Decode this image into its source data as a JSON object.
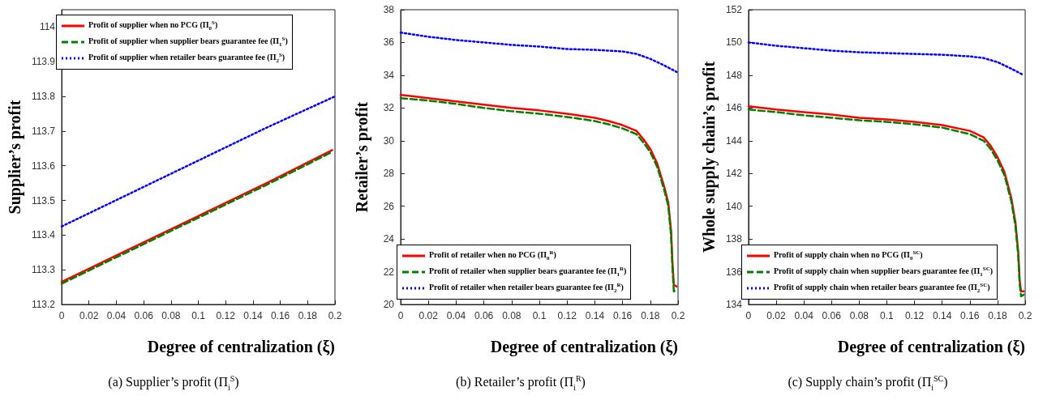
{
  "chart_data": [
    {
      "type": "line",
      "title": "(a) Supplier’s profit (Π$_{i}$$^{S}$)",
      "xlabel": "Degree of centralization (ξ)",
      "ylabel": "Supplier’s profit",
      "xlim": [
        0,
        0.2
      ],
      "xticks": [
        0,
        0.02,
        0.04,
        0.06,
        0.08,
        0.1,
        0.12,
        0.14,
        0.16,
        0.18,
        0.2
      ],
      "ylim": [
        113.2,
        114.05
      ],
      "yticks": [
        113.2,
        113.3,
        113.4,
        113.5,
        113.6,
        113.7,
        113.8,
        113.9,
        114
      ],
      "grid": false,
      "legend": "top left",
      "marker": "none",
      "series": [
        {
          "name": "Profit of supplier when no PCG (Π$_{0}$$^{S}$)",
          "color": "#ff0000",
          "line_style": "solid",
          "x": [
            0,
            0.05,
            0.1,
            0.15,
            0.198
          ],
          "values": [
            113.265,
            113.36,
            113.455,
            113.55,
            113.645
          ]
        },
        {
          "name": "Profit of supplier when supplier bears guarantee fee (Π$_{1}$$^{S}$)",
          "color": "#008000",
          "line_style": "dashed",
          "x": [
            0,
            0.05,
            0.1,
            0.15,
            0.198
          ],
          "values": [
            113.26,
            113.355,
            113.45,
            113.545,
            113.64
          ]
        },
        {
          "name": "Profit of supplier when retailer bears guarantee fee (Π$_{2}$$^{S}$)",
          "color": "#0000ff",
          "line_style": "dotted",
          "x": [
            0,
            0.05,
            0.1,
            0.15,
            0.2
          ],
          "values": [
            113.425,
            113.52,
            113.615,
            113.71,
            113.8
          ]
        }
      ]
    },
    {
      "type": "line",
      "title": "(b) Retailer’s profit (Π$_{i}$$^{R}$)",
      "xlabel": "Degree of centralization (ξ)",
      "ylabel": "Retailer’s profit",
      "xlim": [
        0,
        0.2
      ],
      "xticks": [
        0,
        0.02,
        0.04,
        0.06,
        0.08,
        0.1,
        0.12,
        0.14,
        0.16,
        0.18,
        0.2
      ],
      "ylim": [
        20,
        38
      ],
      "yticks": [
        20,
        22,
        24,
        26,
        28,
        30,
        32,
        34,
        36,
        38
      ],
      "grid": false,
      "legend": "bottom left",
      "marker": "none",
      "series": [
        {
          "name": "Profit of retailer when no PCG (Π$_{0}$$^{R}$)",
          "color": "#ff0000",
          "line_style": "solid",
          "x": [
            0,
            0.02,
            0.04,
            0.06,
            0.08,
            0.1,
            0.12,
            0.14,
            0.15,
            0.16,
            0.17,
            0.175,
            0.18,
            0.185,
            0.19,
            0.193,
            0.195,
            0.196,
            0.197,
            0.199
          ],
          "values": [
            32.8,
            32.6,
            32.4,
            32.2,
            32.0,
            31.85,
            31.65,
            31.4,
            31.2,
            30.95,
            30.6,
            30.1,
            29.5,
            28.6,
            27.2,
            26.2,
            24.5,
            22.5,
            21.2,
            21.1
          ]
        },
        {
          "name": "Profit of retailer when supplier bears guarantee fee (Π$_{1}$$^{R}$)",
          "color": "#008000",
          "line_style": "dashed",
          "x": [
            0,
            0.02,
            0.04,
            0.06,
            0.08,
            0.1,
            0.12,
            0.14,
            0.15,
            0.16,
            0.17,
            0.175,
            0.18,
            0.185,
            0.19,
            0.193,
            0.195,
            0.196,
            0.197,
            0.199
          ],
          "values": [
            32.6,
            32.45,
            32.25,
            32.0,
            31.8,
            31.65,
            31.45,
            31.2,
            31.0,
            30.75,
            30.4,
            29.9,
            29.3,
            28.4,
            27.0,
            26.0,
            24.2,
            22.2,
            20.8,
            20.9
          ]
        },
        {
          "name": "Profit of retailer when retailer bears guarantee fee (Π$_{2}$$^{R}$)",
          "color": "#0000ff",
          "line_style": "dotted",
          "x": [
            0,
            0.02,
            0.04,
            0.06,
            0.08,
            0.1,
            0.12,
            0.14,
            0.16,
            0.17,
            0.18,
            0.19,
            0.199
          ],
          "values": [
            36.6,
            36.35,
            36.15,
            36.0,
            35.85,
            35.75,
            35.6,
            35.55,
            35.45,
            35.3,
            35.0,
            34.6,
            34.2
          ]
        }
      ]
    },
    {
      "type": "line",
      "title": "(c) Supply chain’s profit (Π$_{i}$$^{SC}$)",
      "xlabel": "Degree of centralization (ξ)",
      "ylabel": "Whole supply chain’s profit",
      "xlim": [
        0,
        0.2
      ],
      "xticks": [
        0,
        0.02,
        0.04,
        0.06,
        0.08,
        0.1,
        0.12,
        0.14,
        0.16,
        0.18,
        0.2
      ],
      "ylim": [
        134,
        152
      ],
      "yticks": [
        134,
        136,
        138,
        140,
        142,
        144,
        146,
        148,
        150,
        152
      ],
      "grid": false,
      "legend": "bottom left",
      "marker": "none",
      "series": [
        {
          "name": "Profit of supply chain when no PCG (Π$_{0}$$^{SC}$)",
          "color": "#ff0000",
          "line_style": "solid",
          "x": [
            0,
            0.02,
            0.04,
            0.06,
            0.08,
            0.1,
            0.12,
            0.14,
            0.16,
            0.17,
            0.175,
            0.18,
            0.185,
            0.19,
            0.193,
            0.195,
            0.196,
            0.197,
            0.199
          ],
          "values": [
            146.1,
            145.9,
            145.75,
            145.6,
            145.4,
            145.3,
            145.15,
            144.95,
            144.6,
            144.2,
            143.7,
            143.0,
            142.1,
            140.5,
            139.0,
            137.2,
            135.5,
            134.8,
            134.8
          ]
        },
        {
          "name": "Profit of supply chain when supplier bears guarantee fee (Π$_{1}$$^{SC}$)",
          "color": "#008000",
          "line_style": "dashed",
          "x": [
            0,
            0.02,
            0.04,
            0.06,
            0.08,
            0.1,
            0.12,
            0.14,
            0.16,
            0.17,
            0.175,
            0.18,
            0.185,
            0.19,
            0.193,
            0.195,
            0.196,
            0.197,
            0.199
          ],
          "values": [
            145.9,
            145.75,
            145.55,
            145.4,
            145.25,
            145.15,
            145.0,
            144.8,
            144.4,
            144.0,
            143.5,
            142.8,
            141.9,
            140.3,
            138.8,
            137.0,
            135.3,
            134.5,
            134.6
          ]
        },
        {
          "name": "Profit of supply chain when retailer bears guarantee fee (Π$_{2}$$^{SC}$)",
          "color": "#0000ff",
          "line_style": "dotted",
          "x": [
            0,
            0.02,
            0.04,
            0.06,
            0.08,
            0.1,
            0.12,
            0.14,
            0.16,
            0.17,
            0.18,
            0.19,
            0.199
          ],
          "values": [
            150.0,
            149.8,
            149.65,
            149.5,
            149.4,
            149.35,
            149.3,
            149.25,
            149.15,
            149.05,
            148.8,
            148.4,
            148.0
          ]
        }
      ]
    }
  ]
}
